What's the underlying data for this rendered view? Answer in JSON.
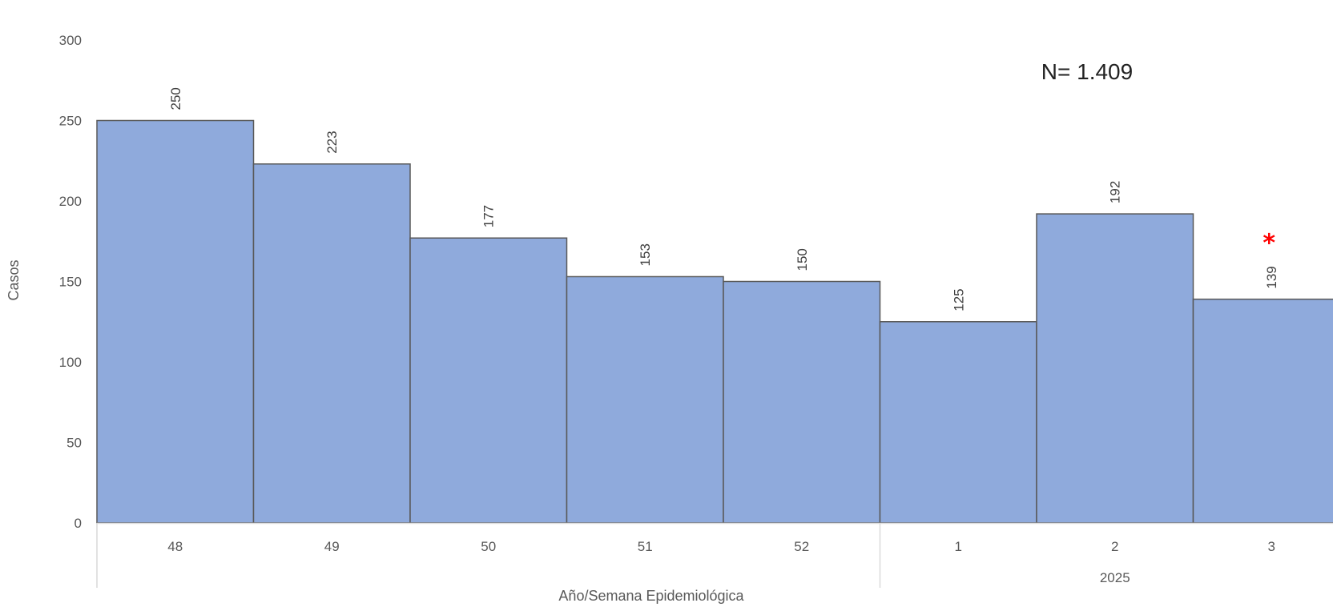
{
  "chart_data": {
    "type": "bar",
    "categories": [
      "48",
      "49",
      "50",
      "51",
      "52",
      "1",
      "2",
      "3"
    ],
    "values": [
      250,
      223,
      177,
      153,
      150,
      125,
      192,
      139
    ],
    "group_labels": [
      {
        "label": "",
        "categories": [
          "48",
          "49",
          "50",
          "51",
          "52"
        ]
      },
      {
        "label": "2025",
        "categories": [
          "1",
          "2",
          "3"
        ]
      }
    ],
    "title": "",
    "xlabel": "Año/Semana Epidemiológica",
    "ylabel": "Casos",
    "ylim": [
      0,
      300
    ],
    "yticks": [
      0,
      50,
      100,
      150,
      200,
      250,
      300
    ],
    "grid": false,
    "legend": "none",
    "bar_color": "#8faadc",
    "bar_edge_color": "#595959",
    "annotation": "N= 1.409",
    "marker": {
      "symbol": "*",
      "category": "3",
      "color": "#ff0000"
    }
  }
}
